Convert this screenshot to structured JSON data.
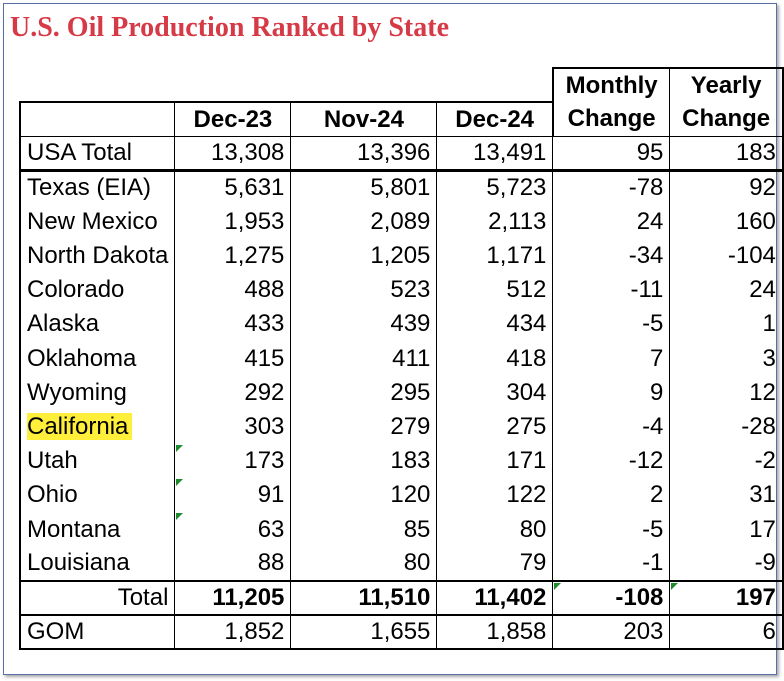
{
  "title": "U.S. Oil Production Ranked by State",
  "chart_data": {
    "type": "table",
    "title": "U.S. Oil Production Ranked by State",
    "columns": [
      "",
      "Dec-23",
      "Nov-24",
      "Dec-24",
      "Monthly Change",
      "Yearly Change"
    ],
    "header_top": {
      "monthly": "Monthly",
      "yearly": "Yearly"
    },
    "header_main": {
      "dec23": "Dec-23",
      "nov24": "Nov-24",
      "dec24": "Dec-24",
      "monthly": "Change",
      "yearly": "Change"
    },
    "usa_total": {
      "label": "USA Total",
      "dec23": "13,308",
      "nov24": "13,396",
      "dec24": "13,491",
      "monthly": "95",
      "yearly": "183"
    },
    "rows": [
      {
        "label": "Texas (EIA)",
        "dec23": "5,631",
        "nov24": "5,801",
        "dec24": "5,723",
        "monthly": "-78",
        "yearly": "92"
      },
      {
        "label": "New Mexico",
        "dec23": "1,953",
        "nov24": "2,089",
        "dec24": "2,113",
        "monthly": "24",
        "yearly": "160"
      },
      {
        "label": "North Dakota",
        "dec23": "1,275",
        "nov24": "1,205",
        "dec24": "1,171",
        "monthly": "-34",
        "yearly": "-104"
      },
      {
        "label": "Colorado",
        "dec23": "488",
        "nov24": "523",
        "dec24": "512",
        "monthly": "-11",
        "yearly": "24"
      },
      {
        "label": "Alaska",
        "dec23": "433",
        "nov24": "439",
        "dec24": "434",
        "monthly": "-5",
        "yearly": "1"
      },
      {
        "label": "Oklahoma",
        "dec23": "415",
        "nov24": "411",
        "dec24": "418",
        "monthly": "7",
        "yearly": "3"
      },
      {
        "label": "Wyoming",
        "dec23": "292",
        "nov24": "295",
        "dec24": "304",
        "monthly": "9",
        "yearly": "12"
      },
      {
        "label": "California",
        "dec23": "303",
        "nov24": "279",
        "dec24": "275",
        "monthly": "-4",
        "yearly": "-28",
        "highlight": "#ffef3a"
      },
      {
        "label": "Utah",
        "dec23": "173",
        "nov24": "183",
        "dec24": "171",
        "monthly": "-12",
        "yearly": "-2"
      },
      {
        "label": "Ohio",
        "dec23": "91",
        "nov24": "120",
        "dec24": "122",
        "monthly": "2",
        "yearly": "31"
      },
      {
        "label": "Montana",
        "dec23": "63",
        "nov24": "85",
        "dec24": "80",
        "monthly": "-5",
        "yearly": "17"
      },
      {
        "label": "Louisiana",
        "dec23": "88",
        "nov24": "80",
        "dec24": "79",
        "monthly": "-1",
        "yearly": "-9"
      }
    ],
    "total": {
      "label": "Total",
      "dec23": "11,205",
      "nov24": "11,510",
      "dec24": "11,402",
      "monthly": "-108",
      "yearly": "197"
    },
    "gom": {
      "label": "GOM",
      "dec23": "1,852",
      "nov24": "1,655",
      "dec24": "1,858",
      "monthly": "203",
      "yearly": "6"
    }
  },
  "colors": {
    "title": "#d63a47",
    "highlight": "#ffef3a",
    "comment_marker": "#1e8a2e",
    "frame": "#5a6fa8"
  }
}
